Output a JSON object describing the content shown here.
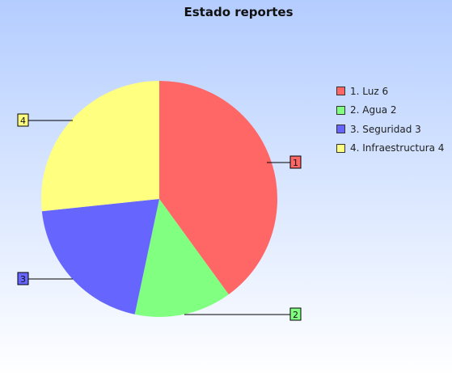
{
  "chart_data": {
    "type": "pie",
    "title": "Estado reportes",
    "slices": [
      {
        "id": "1",
        "label": "1. Luz 6",
        "value": 6,
        "color": "#ff6666"
      },
      {
        "id": "2",
        "label": "2. Agua 2",
        "value": 2,
        "color": "#80ff80"
      },
      {
        "id": "3",
        "label": "3. Seguridad 3",
        "value": 3,
        "color": "#6666ff"
      },
      {
        "id": "4",
        "label": "4. Infraestructura 4",
        "value": 4,
        "color": "#ffff80"
      }
    ],
    "legend_position": "right"
  }
}
